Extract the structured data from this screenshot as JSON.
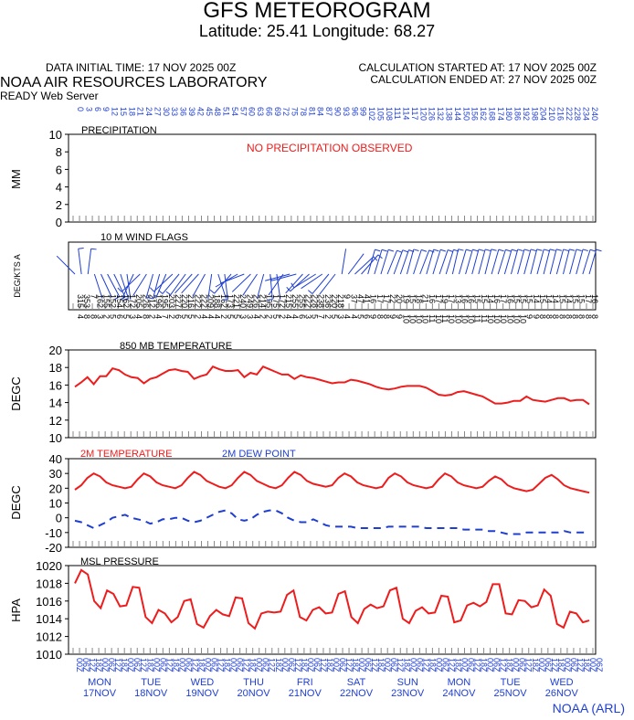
{
  "header": {
    "title": "GFS METEOROGRAM",
    "latlon": "Latitude: 25.41 Longitude:  68.27",
    "initial_time": "DATA INITIAL TIME: 17 NOV 2025 00Z",
    "calc_started": "CALCULATION STARTED AT: 17 NOV 2025 00Z",
    "calc_ended": "CALCULATION ENDED AT: 27 NOV 2025 00Z",
    "lab": "NOAA AIR RESOURCES LABORATORY",
    "server": "READY Web Server"
  },
  "footer": "NOAA (ARL)",
  "colors": {
    "red": "#ee1c1c",
    "blue": "#1f3fd0"
  },
  "chart_data": [
    {
      "type": "bar",
      "title": "PRECIPITATION",
      "ylabel": "MM",
      "ylim": [
        0,
        10
      ],
      "yticks": [
        0,
        2,
        4,
        6,
        8,
        10
      ],
      "annotation": "NO PRECIPITATION OBSERVED",
      "values": []
    },
    {
      "type": "scatter",
      "title": "10 M  WIND FLAGS",
      "ylabel": "DEG/KTS  A",
      "series": [
        {
          "values": [
            [
              315,
              4
            ],
            [
              353,
              8
            ],
            [
              7,
              8
            ],
            [
              162,
              3
            ],
            [
              155,
              2
            ],
            [
              152,
              5
            ],
            [
              154,
              6
            ],
            [
              162,
              5
            ],
            [
              172,
              3
            ],
            [
              205,
              4
            ],
            [
              226,
              8
            ],
            [
              212,
              2
            ],
            [
              196,
              4
            ],
            [
              195,
              7
            ],
            [
              203,
              2
            ],
            [
              227,
              6
            ],
            [
              220,
              5
            ],
            [
              216,
              5
            ],
            [
              222,
              2
            ],
            [
              222,
              4
            ],
            [
              209,
              4
            ],
            [
              188,
              4
            ],
            [
              162,
              2
            ],
            [
              173,
              5
            ],
            [
              221,
              5
            ],
            [
              240,
              3
            ],
            [
              249,
              3
            ],
            [
              226,
              4
            ],
            [
              214,
              2
            ],
            [
              195,
              2
            ],
            [
              175,
              5
            ],
            [
              172,
              2
            ],
            [
              215,
              4
            ],
            [
              255,
              4
            ],
            [
              255,
              6
            ],
            [
              222,
              3
            ],
            [
              228,
              5
            ],
            [
              238,
              7
            ],
            [
              236,
              2
            ],
            [
              220,
              5
            ],
            [
              218,
              3
            ],
            [
              9,
              4
            ],
            [
              37,
              4
            ],
            [
              47,
              5
            ],
            [
              41,
              6
            ],
            [
              16,
              9
            ],
            [
              17,
              8
            ],
            [
              17,
              8
            ],
            [
              22,
              9
            ],
            [
              20,
              9
            ],
            [
              19,
              10
            ],
            [
              15,
              10
            ],
            [
              18,
              10
            ],
            [
              21,
              10
            ],
            [
              16,
              11
            ],
            [
              17,
              10
            ],
            [
              19,
              11
            ],
            [
              17,
              10
            ],
            [
              13,
              10
            ],
            [
              16,
              10
            ],
            [
              16,
              10
            ],
            [
              15,
              11
            ],
            [
              15,
              11
            ],
            [
              14,
              10
            ],
            [
              16,
              10
            ],
            [
              17,
              10
            ],
            [
              16,
              10
            ],
            [
              15,
              10
            ],
            [
              15,
              10
            ],
            [
              15,
              9
            ],
            [
              14,
              9
            ],
            [
              15,
              8
            ],
            [
              14,
              8
            ],
            [
              14,
              8
            ],
            [
              15,
              8
            ],
            [
              14,
              8
            ],
            [
              15,
              8
            ],
            [
              15,
              8
            ],
            [
              17,
              8
            ],
            [
              16,
              8
            ]
          ]
        }
      ]
    },
    {
      "type": "line",
      "title": "850 MB  TEMPERATURE",
      "ylabel": "DEGC",
      "ylim": [
        10,
        20
      ],
      "yticks": [
        10,
        12,
        14,
        16,
        18,
        20
      ],
      "series": [
        {
          "values": [
            15.8,
            16.3,
            16.9,
            16.1,
            17.0,
            17.0,
            17.9,
            17.7,
            17.2,
            16.9,
            16.8,
            16.2,
            16.7,
            16.9,
            17.3,
            17.7,
            17.8,
            17.6,
            17.5,
            16.7,
            17.0,
            17.2,
            18.1,
            17.8,
            17.6,
            17.6,
            17.7,
            16.9,
            17.4,
            17.2,
            18.1,
            17.8,
            17.5,
            17.2,
            17.2,
            16.7,
            17.1,
            16.9,
            16.8,
            16.6,
            16.4,
            16.2,
            16.3,
            16.3,
            16.6,
            16.5,
            16.3,
            16.1,
            15.8,
            15.6,
            15.5,
            15.6,
            15.8,
            15.9,
            15.9,
            15.9,
            15.7,
            15.3,
            14.9,
            14.8,
            14.9,
            15.2,
            15.3,
            15.1,
            14.9,
            14.7,
            14.3,
            13.9,
            13.9,
            14.0,
            14.2,
            14.2,
            14.7,
            14.3,
            14.2,
            14.1,
            14.3,
            14.5,
            14.5,
            14.2,
            14.3,
            14.3,
            13.8
          ]
        }
      ]
    },
    {
      "type": "line",
      "title": "",
      "ylabel": "DEGC",
      "ylim": [
        -20,
        40
      ],
      "yticks": [
        -20,
        -10,
        0,
        10,
        20,
        30,
        40
      ],
      "series": [
        {
          "name": "2M TEMPERATURE",
          "color": "#ee1c1c",
          "style": "solid",
          "values": [
            19,
            22,
            27,
            30,
            28,
            24,
            22,
            21,
            20,
            21,
            26,
            30,
            28,
            24,
            22,
            21,
            20,
            22,
            27,
            31,
            29,
            25,
            23,
            21,
            20,
            22,
            27,
            31,
            29,
            25,
            23,
            21,
            20,
            22,
            27,
            31,
            29,
            25,
            23,
            22,
            21,
            22,
            27,
            30,
            28,
            24,
            22,
            21,
            20,
            21,
            27,
            30,
            28,
            24,
            22,
            21,
            20,
            21,
            26,
            30,
            28,
            24,
            22,
            21,
            20,
            21,
            25,
            28,
            26,
            22,
            20,
            19,
            18,
            19,
            23,
            27,
            29,
            26,
            22,
            20,
            19,
            18,
            17
          ]
        },
        {
          "name": "2M  DEW POINT",
          "color": "#1f3fd0",
          "style": "dashed",
          "values": [
            -2,
            -3,
            -5,
            -7,
            -5,
            -3,
            0,
            1,
            2,
            0,
            -1,
            -2,
            -4,
            -3,
            -1,
            -1,
            0,
            0,
            -2,
            -3,
            -2,
            0,
            2,
            4,
            5,
            3,
            -1,
            -2,
            -1,
            2,
            4,
            5,
            5,
            3,
            0,
            -2,
            -3,
            -3,
            -1,
            -3,
            -5,
            -6,
            -6,
            -6,
            -6,
            -7,
            -7,
            -7,
            -7,
            -7,
            -6,
            -6,
            -6,
            -6,
            -6,
            -6,
            -7,
            -7,
            -7,
            -7,
            -7,
            -7,
            -8,
            -8,
            -8,
            -8,
            -9,
            -9,
            -10,
            -11,
            -11,
            -11,
            -10,
            -10,
            -10,
            -10,
            -10,
            -10,
            -9,
            -10,
            -10,
            -10,
            -10
          ]
        }
      ]
    },
    {
      "type": "line",
      "title": "MSL PRESSURE",
      "ylabel": "HPA",
      "ylim": [
        1010,
        1020
      ],
      "yticks": [
        1010,
        1012,
        1014,
        1016,
        1018,
        1020
      ],
      "series": [
        {
          "color": "#ee1c1c",
          "values": [
            1018.0,
            1019.5,
            1019.0,
            1016.0,
            1015.2,
            1017.2,
            1016.8,
            1015.4,
            1015.5,
            1017.6,
            1017.5,
            1014.2,
            1013.5,
            1015.0,
            1014.6,
            1013.6,
            1014.2,
            1016.0,
            1016.2,
            1013.4,
            1013.0,
            1014.3,
            1015.0,
            1014.5,
            1014.3,
            1016.4,
            1016.3,
            1013.5,
            1012.9,
            1014.6,
            1014.8,
            1014.7,
            1014.8,
            1016.7,
            1017.2,
            1014.2,
            1013.8,
            1015.0,
            1015.3,
            1014.6,
            1014.7,
            1016.8,
            1017.1,
            1014.2,
            1013.5,
            1015.1,
            1015.6,
            1015.2,
            1015.4,
            1017.2,
            1017.5,
            1014.0,
            1013.5,
            1014.9,
            1015.3,
            1014.6,
            1014.7,
            1016.6,
            1016.5,
            1013.6,
            1013.8,
            1015.5,
            1015.8,
            1015.4,
            1015.9,
            1017.9,
            1017.9,
            1014.6,
            1014.5,
            1016.1,
            1016.0,
            1015.3,
            1015.5,
            1017.3,
            1016.6,
            1013.4,
            1013.0,
            1014.8,
            1014.6,
            1013.6,
            1013.8
          ]
        }
      ],
      "x_axis": {
        "hours": [
          0,
          3,
          6,
          9,
          12,
          15,
          18,
          21,
          24,
          27,
          30,
          33,
          36,
          39,
          42,
          45,
          48,
          51,
          54,
          57,
          60,
          63,
          66,
          69,
          72,
          75,
          78,
          81,
          84,
          87,
          90,
          93,
          96,
          99,
          102,
          105,
          108,
          111,
          114,
          117,
          120,
          126,
          132,
          138,
          144,
          150,
          156,
          162,
          168,
          174,
          180,
          186,
          192,
          198,
          204,
          210,
          216,
          222,
          228,
          234,
          240
        ],
        "tick_labels": [
          "00Z",
          "06Z",
          "12Z",
          "18Z"
        ],
        "days": [
          {
            "dow": "MON",
            "date": "17NOV"
          },
          {
            "dow": "TUE",
            "date": "18NOV"
          },
          {
            "dow": "WED",
            "date": "19NOV"
          },
          {
            "dow": "THU",
            "date": "20NOV"
          },
          {
            "dow": "FRI",
            "date": "21NOV"
          },
          {
            "dow": "SAT",
            "date": "22NOV"
          },
          {
            "dow": "SUN",
            "date": "23NOV"
          },
          {
            "dow": "MON",
            "date": "24NOV"
          },
          {
            "dow": "TUE",
            "date": "25NOV"
          },
          {
            "dow": "WED",
            "date": "26NOV"
          }
        ]
      }
    }
  ]
}
